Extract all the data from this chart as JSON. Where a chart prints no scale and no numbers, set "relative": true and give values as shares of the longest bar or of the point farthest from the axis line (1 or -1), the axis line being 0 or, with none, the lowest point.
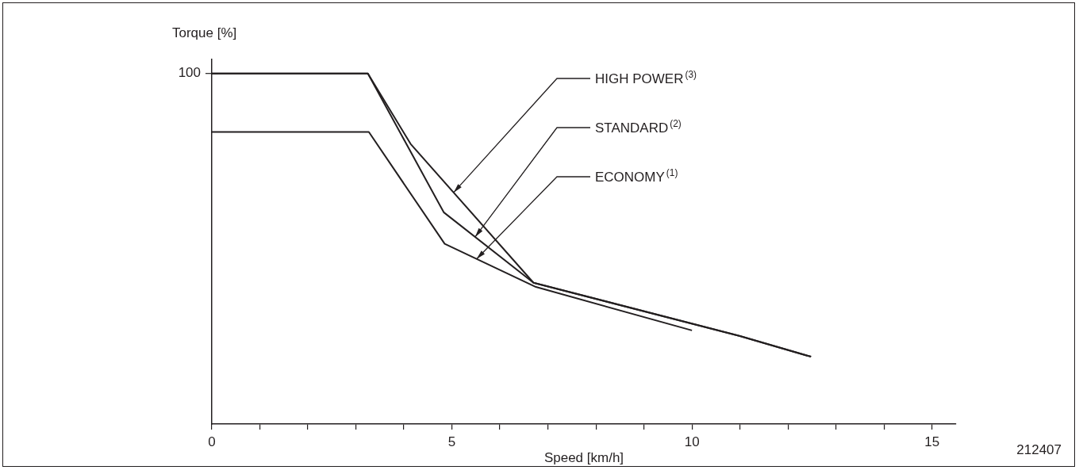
{
  "chart_data": {
    "type": "line",
    "xlabel": "Speed [km/h]",
    "ylabel": "Torque [%]",
    "relative": true,
    "xlim": [
      0,
      15.5
    ],
    "xticks": [
      0,
      {
        "value": 1,
        "label": null
      },
      {
        "value": 2,
        "label": null
      },
      {
        "value": 3,
        "label": null
      },
      {
        "value": 4,
        "label": null
      },
      5,
      {
        "value": 6,
        "label": null
      },
      {
        "value": 7,
        "label": null
      },
      {
        "value": 8,
        "label": null
      },
      {
        "value": 9,
        "label": null
      },
      10,
      {
        "value": 11,
        "label": null
      },
      {
        "value": 12,
        "label": null
      },
      {
        "value": 13,
        "label": null
      },
      {
        "value": 14,
        "label": null
      },
      15
    ],
    "grid": false,
    "legend": false,
    "marker": "none",
    "line_style": "solid",
    "series": [
      {
        "color": "#231f20",
        "x": [
          0,
          3.25,
          4.14,
          6.7,
          11.0,
          12.48
        ],
        "values": [
          1,
          1,
          0.799,
          0.403,
          0.251,
          0.192
        ]
      },
      {
        "color": "#231f20",
        "x": [
          0,
          3.25,
          4.83,
          6.7,
          11.0,
          12.48
        ],
        "values": [
          1,
          1,
          0.604,
          0.403,
          0.251,
          0.192
        ]
      },
      {
        "color": "#231f20",
        "x": [
          0,
          3.27,
          4.85,
          6.75,
          10
        ],
        "values": [
          0.833,
          0.833,
          0.514,
          0.391,
          0.267
        ]
      }
    ],
    "annotations": [
      "HIGH POWER$^{(3)}$",
      "STANDARD$^{(2)}$",
      "ECONOMY$^{(1)}$",
      "100",
      "212407"
    ]
  }
}
